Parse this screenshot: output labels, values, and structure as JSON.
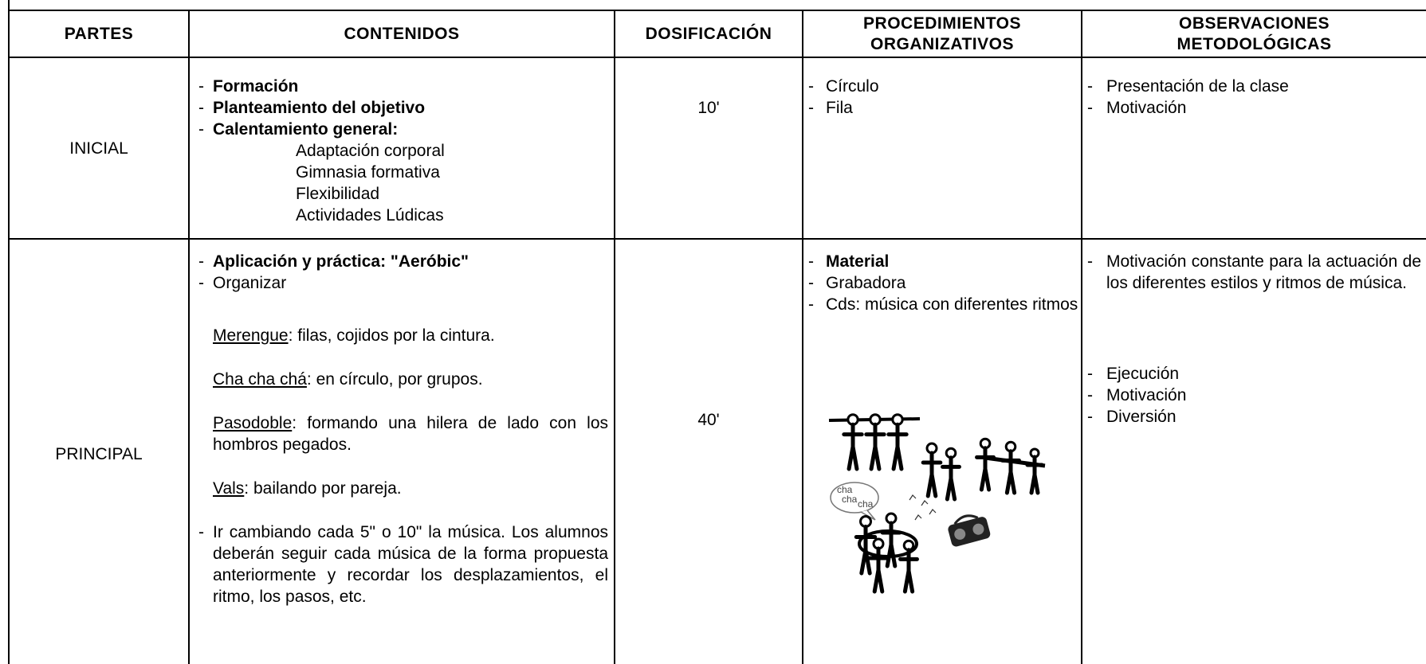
{
  "table": {
    "headers": [
      "PARTES",
      "CONTENIDOS",
      "DOSIFICACIÓN",
      "PROCEDIMIENTOS ORGANIZATIVOS",
      "OBSERVACIONES METODOLÓGICAS"
    ],
    "rows": [
      {
        "parte": "INICIAL",
        "contenidos": {
          "items": [
            "Formación",
            "Planteamiento del objetivo",
            "Calentamiento general:"
          ],
          "subitems": [
            "Adaptación corporal",
            "Gimnasia formativa",
            "Flexibilidad",
            "Actividades Lúdicas"
          ]
        },
        "dosificacion": "10'",
        "procedimientos": {
          "items": [
            "Círculo",
            "Fila"
          ]
        },
        "observaciones": {
          "items": [
            "Presentación de la clase",
            "Motivación"
          ]
        }
      },
      {
        "parte": "PRINCIPAL",
        "contenidos": {
          "items": [
            "Aplicación y práctica: \"Aeróbic\"",
            "Organizar"
          ],
          "dances": [
            {
              "name": "Merengue",
              "text": ": filas, cojidos por la cintura."
            },
            {
              "name": "Cha cha chá",
              "text": ": en círculo, por grupos."
            },
            {
              "name": "Pasodoble",
              "text": ": formando una hilera de lado con los hombros pegados."
            },
            {
              "name": "Vals",
              "text": ": bailando por pareja."
            }
          ],
          "note": "Ir cambiando cada 5\" o 10\" la música. Los alumnos deberán seguir cada música de la forma propuesta anteriormente y recordar los desplazamientos, el ritmo, los pasos, etc."
        },
        "dosificacion": "40'",
        "procedimientos": {
          "items": [
            "Material",
            "Grabadora",
            "Cds: música con diferentes ritmos"
          ],
          "bubble": [
            "cha",
            "cha",
            "cha"
          ]
        },
        "observaciones": {
          "items": [
            "Motivación constante para la actuación de los diferentes estilos y ritmos de música."
          ],
          "items2": [
            "Ejecución",
            "Motivación",
            "Diversión"
          ]
        }
      }
    ]
  }
}
